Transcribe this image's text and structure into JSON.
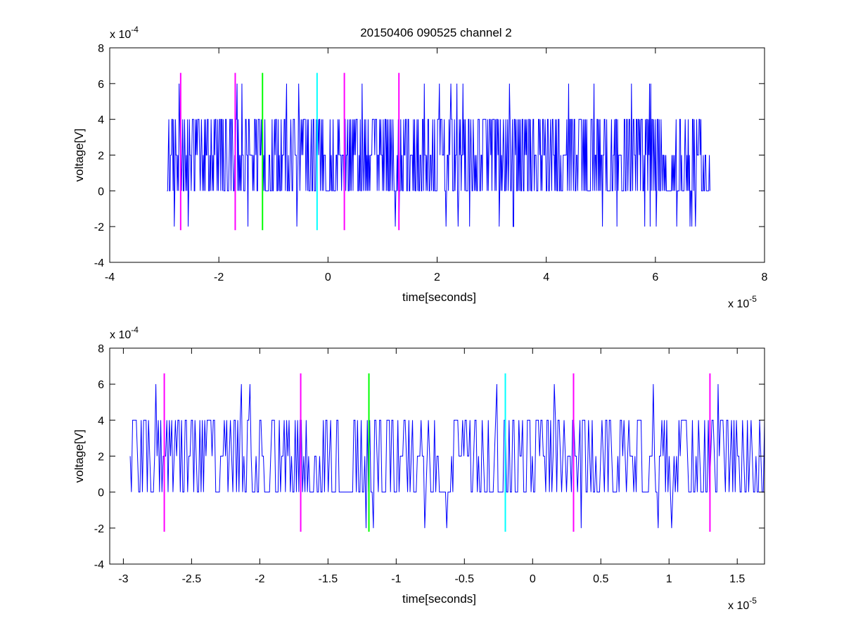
{
  "figure": {
    "title": "20150406 090525 channel 2"
  },
  "colors": {
    "signal": "#0000ff",
    "marker_magenta": "#ff00ff",
    "marker_green": "#00ff00",
    "marker_cyan": "#00ffff",
    "axes": "#000000",
    "background": "#ffffff"
  },
  "chart_data": [
    {
      "type": "line",
      "title": "20150406 090525 channel 2",
      "xlabel": "time[seconds]",
      "ylabel": "voltage[V]",
      "x_exponent_label": "x 10",
      "x_exponent": "-5",
      "y_exponent_label": "x 10",
      "y_exponent": "-4",
      "xlim": [
        -4e-05,
        8e-05
      ],
      "ylim": [
        -0.0004,
        0.0008
      ],
      "x_ticks": [
        -4e-05,
        -2e-05,
        0,
        2e-05,
        4e-05,
        6e-05,
        8e-05
      ],
      "x_tick_labels": [
        "-4",
        "-2",
        "0",
        "2",
        "4",
        "6",
        "8"
      ],
      "y_ticks": [
        -0.0004,
        -0.0002,
        0,
        0.0002,
        0.0004,
        0.0006,
        0.0008
      ],
      "y_tick_labels": [
        "-4",
        "-2",
        "0",
        "2",
        "4",
        "6",
        "8"
      ],
      "grid": false,
      "signal": {
        "x_start": -2.95e-05,
        "x_end": 7e-05,
        "levels": [
          -0.0002,
          0,
          0.0002,
          0.0004,
          0.0006
        ],
        "baseline": 0.0002
      },
      "markers": [
        {
          "x": -2.7e-05,
          "color": "magenta",
          "y_range": [
            -0.00022,
            0.00066
          ]
        },
        {
          "x": -1.7e-05,
          "color": "magenta",
          "y_range": [
            -0.00022,
            0.00066
          ]
        },
        {
          "x": -1.2e-05,
          "color": "green",
          "y_range": [
            -0.00022,
            0.00066
          ]
        },
        {
          "x": -2e-06,
          "color": "cyan",
          "y_range": [
            -0.00022,
            0.00066
          ]
        },
        {
          "x": 3e-06,
          "color": "magenta",
          "y_range": [
            -0.00022,
            0.00066
          ]
        },
        {
          "x": 1.3e-05,
          "color": "magenta",
          "y_range": [
            -0.00022,
            0.00066
          ]
        }
      ]
    },
    {
      "type": "line",
      "title": "",
      "xlabel": "time[seconds]",
      "ylabel": "voltage[V]",
      "x_exponent_label": "x 10",
      "x_exponent": "-5",
      "y_exponent_label": "x 10",
      "y_exponent": "-4",
      "xlim": [
        -3.1e-05,
        1.7e-05
      ],
      "ylim": [
        -0.0004,
        0.0008
      ],
      "x_ticks": [
        -3e-05,
        -2.5e-05,
        -2e-05,
        -1.5e-05,
        -1e-05,
        -5e-06,
        0,
        5e-06,
        1e-05,
        1.5e-05
      ],
      "x_tick_labels": [
        "-3",
        "-2.5",
        "-2",
        "-1.5",
        "-1",
        "-0.5",
        "0",
        "0.5",
        "1",
        "1.5"
      ],
      "y_ticks": [
        -0.0004,
        -0.0002,
        0,
        0.0002,
        0.0004,
        0.0006,
        0.0008
      ],
      "y_tick_labels": [
        "-4",
        "-2",
        "0",
        "2",
        "4",
        "6",
        "8"
      ],
      "grid": false,
      "signal": {
        "x_start": -2.95e-05,
        "x_end": 1.7e-05,
        "levels": [
          -0.0002,
          0,
          0.0002,
          0.0004,
          0.0006
        ],
        "baseline": 0.0002
      },
      "markers": [
        {
          "x": -2.7e-05,
          "color": "magenta",
          "y_range": [
            -0.00022,
            0.00066
          ]
        },
        {
          "x": -1.7e-05,
          "color": "magenta",
          "y_range": [
            -0.00022,
            0.00066
          ]
        },
        {
          "x": -1.2e-05,
          "color": "green",
          "y_range": [
            -0.00022,
            0.00066
          ]
        },
        {
          "x": -2e-06,
          "color": "cyan",
          "y_range": [
            -0.00022,
            0.00066
          ]
        },
        {
          "x": 3e-06,
          "color": "magenta",
          "y_range": [
            -0.00022,
            0.00066
          ]
        },
        {
          "x": 1.3e-05,
          "color": "magenta",
          "y_range": [
            -0.00022,
            0.00066
          ]
        }
      ]
    }
  ]
}
